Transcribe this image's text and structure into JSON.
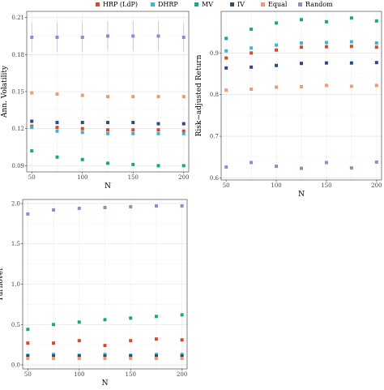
{
  "legend": {
    "items": [
      {
        "name": "HRP (LdP)",
        "color": "#d84a2a"
      },
      {
        "name": "DHRP",
        "color": "#3fb3d6"
      },
      {
        "name": "MV",
        "color": "#1ba58a"
      },
      {
        "name": "IV",
        "color": "#2c4a82"
      },
      {
        "name": "Equal",
        "color": "#f09a72"
      },
      {
        "name": "Random",
        "color": "#8b8fc7"
      }
    ]
  },
  "chart_data": [
    {
      "type": "scatter",
      "ylabel": "Ann. Volatility",
      "xlabel": "N",
      "x": [
        50,
        75,
        100,
        125,
        150,
        175,
        200
      ],
      "xticks": [
        50,
        100,
        150,
        200
      ],
      "yticks": [
        0.09,
        0.12,
        0.15,
        0.18,
        0.21
      ],
      "ylim": [
        0.085,
        0.215
      ],
      "xlim": [
        45,
        205
      ],
      "series": [
        {
          "name": "Random",
          "values": [
            0.194,
            0.194,
            0.194,
            0.195,
            0.195,
            0.195,
            0.194
          ],
          "err": 0.012
        },
        {
          "name": "Equal",
          "values": [
            0.149,
            0.148,
            0.147,
            0.146,
            0.146,
            0.146,
            0.146
          ]
        },
        {
          "name": "IV",
          "values": [
            0.126,
            0.125,
            0.125,
            0.125,
            0.125,
            0.124,
            0.124
          ]
        },
        {
          "name": "HRP (LdP)",
          "values": [
            0.122,
            0.121,
            0.12,
            0.119,
            0.119,
            0.119,
            0.118
          ]
        },
        {
          "name": "DHRP",
          "values": [
            0.121,
            0.118,
            0.117,
            0.116,
            0.116,
            0.116,
            0.116
          ]
        },
        {
          "name": "MV",
          "values": [
            0.102,
            0.097,
            0.095,
            0.092,
            0.091,
            0.09,
            0.09
          ]
        }
      ]
    },
    {
      "type": "scatter",
      "ylabel": "Risk−adjusted Return",
      "xlabel": "N",
      "x": [
        50,
        75,
        100,
        125,
        150,
        175,
        200
      ],
      "xticks": [
        50,
        100,
        150,
        200
      ],
      "yticks": [
        0.6,
        0.7,
        0.8,
        0.9
      ],
      "ylim": [
        0.595,
        1.0
      ],
      "xlim": [
        45,
        205
      ],
      "series": [
        {
          "name": "MV",
          "values": [
            0.935,
            0.957,
            0.972,
            0.98,
            0.975,
            0.984,
            0.977
          ]
        },
        {
          "name": "DHRP",
          "values": [
            0.905,
            0.912,
            0.919,
            0.924,
            0.925,
            0.927,
            0.924
          ]
        },
        {
          "name": "HRP (LdP)",
          "values": [
            0.888,
            0.9,
            0.907,
            0.914,
            0.915,
            0.916,
            0.914
          ]
        },
        {
          "name": "IV",
          "values": [
            0.864,
            0.866,
            0.87,
            0.875,
            0.876,
            0.876,
            0.877
          ]
        },
        {
          "name": "Equal",
          "values": [
            0.811,
            0.813,
            0.818,
            0.819,
            0.822,
            0.82,
            0.822
          ]
        },
        {
          "name": "Random",
          "values": [
            0.626,
            0.637,
            0.628,
            0.623,
            0.637,
            0.624,
            0.638
          ]
        }
      ]
    },
    {
      "type": "scatter",
      "ylabel": "Turnover",
      "xlabel": "N",
      "x": [
        50,
        75,
        100,
        125,
        150,
        175,
        200
      ],
      "xticks": [
        50,
        100,
        150,
        200
      ],
      "yticks": [
        0.0,
        0.5,
        1.0,
        1.5,
        2.0
      ],
      "ylim": [
        -0.05,
        2.05
      ],
      "xlim": [
        45,
        205
      ],
      "series": [
        {
          "name": "Random",
          "values": [
            1.87,
            1.92,
            1.94,
            1.95,
            1.96,
            1.97,
            1.97
          ]
        },
        {
          "name": "MV",
          "values": [
            0.44,
            0.5,
            0.53,
            0.56,
            0.58,
            0.6,
            0.62
          ]
        },
        {
          "name": "HRP (LdP)",
          "values": [
            0.27,
            0.27,
            0.3,
            0.24,
            0.3,
            0.32,
            0.31
          ]
        },
        {
          "name": "DHRP",
          "values": [
            0.12,
            0.13,
            0.12,
            0.13,
            0.12,
            0.13,
            0.13
          ]
        },
        {
          "name": "IV",
          "values": [
            0.11,
            0.11,
            0.11,
            0.11,
            0.11,
            0.11,
            0.11
          ]
        },
        {
          "name": "Equal",
          "values": [
            0.08,
            0.08,
            0.08,
            0.08,
            0.08,
            0.08,
            0.08
          ]
        }
      ]
    }
  ]
}
